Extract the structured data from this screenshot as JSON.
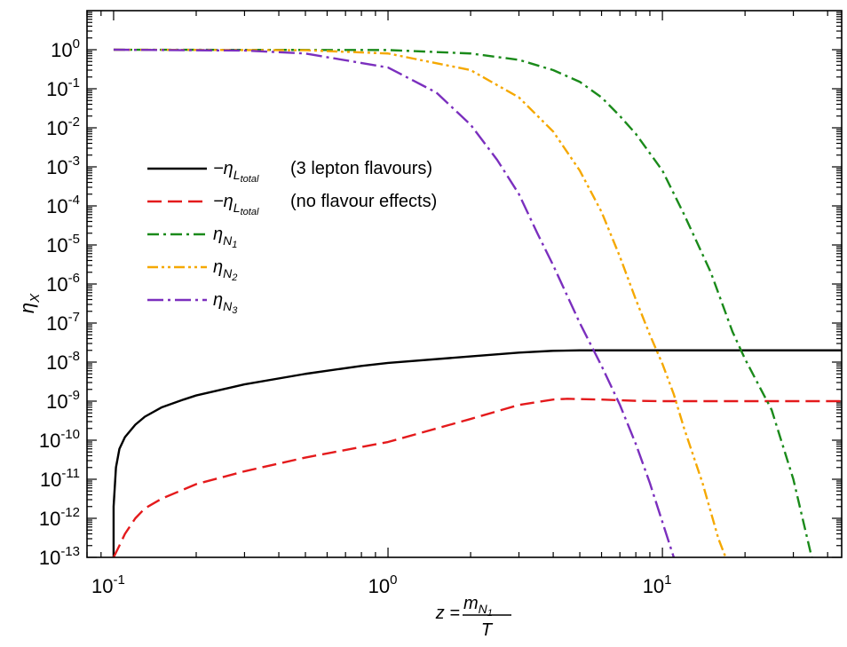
{
  "chart_data": {
    "type": "line",
    "x_scale": "log",
    "y_scale": "log",
    "xlim": [
      0.08,
      45
    ],
    "ylim": [
      1e-13,
      10
    ],
    "x_tick_labels": [
      {
        "base": "10",
        "exp": "-1",
        "value": 0.1
      },
      {
        "base": "10",
        "exp": "0",
        "value": 1
      },
      {
        "base": "10",
        "exp": "1",
        "value": 10
      }
    ],
    "y_tick_labels": [
      {
        "base": "10",
        "exp": "0",
        "value": 1
      },
      {
        "base": "10",
        "exp": "-1",
        "value": 0.1
      },
      {
        "base": "10",
        "exp": "-2",
        "value": 0.01
      },
      {
        "base": "10",
        "exp": "-3",
        "value": 0.001
      },
      {
        "base": "10",
        "exp": "-4",
        "value": 0.0001
      },
      {
        "base": "10",
        "exp": "-5",
        "value": 1e-05
      },
      {
        "base": "10",
        "exp": "-6",
        "value": 1e-06
      },
      {
        "base": "10",
        "exp": "-7",
        "value": 1e-07
      },
      {
        "base": "10",
        "exp": "-8",
        "value": 1e-08
      },
      {
        "base": "10",
        "exp": "-9",
        "value": 1e-09
      },
      {
        "base": "10",
        "exp": "-10",
        "value": 1e-10
      },
      {
        "base": "10",
        "exp": "-11",
        "value": 1e-11
      },
      {
        "base": "10",
        "exp": "-12",
        "value": 1e-12
      },
      {
        "base": "10",
        "exp": "-13",
        "value": 1e-13
      }
    ],
    "ylabel": {
      "main": "η",
      "sub": "X"
    },
    "xlabel": {
      "lhs": "z =",
      "num_main": "m",
      "num_sub": "N",
      "num_subsub": "1",
      "den": "T"
    },
    "legend_position": "upper-left",
    "series": [
      {
        "id": "total3",
        "legend": {
          "prefix": "−η",
          "sub": "L",
          "subsub": "total",
          "note": "(3 lepton flavours)"
        },
        "color": "#000000",
        "dash": "solid",
        "points": [
          [
            0.1,
            1e-13
          ],
          [
            0.1,
            2e-12
          ],
          [
            0.102,
            2e-11
          ],
          [
            0.105,
            6e-11
          ],
          [
            0.11,
            1.2e-10
          ],
          [
            0.12,
            2.5e-10
          ],
          [
            0.13,
            4e-10
          ],
          [
            0.15,
            7e-10
          ],
          [
            0.18,
            1.1e-09
          ],
          [
            0.2,
            1.4e-09
          ],
          [
            0.3,
            2.7e-09
          ],
          [
            0.5,
            5e-09
          ],
          [
            0.8,
            8e-09
          ],
          [
            1,
            9.5e-09
          ],
          [
            2,
            1.4e-08
          ],
          [
            3,
            1.75e-08
          ],
          [
            4,
            1.95e-08
          ],
          [
            5,
            2e-08
          ],
          [
            10,
            2e-08
          ],
          [
            45,
            2e-08
          ]
        ]
      },
      {
        "id": "noflav",
        "legend": {
          "prefix": "−η",
          "sub": "L",
          "subsub": "total",
          "note": "(no flavour effects)"
        },
        "color": "#e41a1c",
        "dash": "long-dash",
        "points": [
          [
            0.1,
            1e-13
          ],
          [
            0.105,
            2e-13
          ],
          [
            0.11,
            4e-13
          ],
          [
            0.12,
            1e-12
          ],
          [
            0.13,
            1.8e-12
          ],
          [
            0.15,
            3.2e-12
          ],
          [
            0.2,
            7.5e-12
          ],
          [
            0.3,
            1.6e-11
          ],
          [
            0.5,
            3.6e-11
          ],
          [
            1,
            9e-11
          ],
          [
            2,
            3.5e-10
          ],
          [
            3,
            8e-10
          ],
          [
            4,
            1.1e-09
          ],
          [
            4.5,
            1.15e-09
          ],
          [
            6,
            1.1e-09
          ],
          [
            8,
            1.02e-09
          ],
          [
            10,
            1e-09
          ],
          [
            45,
            1e-09
          ]
        ]
      },
      {
        "id": "n1",
        "legend": {
          "prefix": "η",
          "sub": "N",
          "subsub": "1",
          "note": ""
        },
        "color": "#1a8a1a",
        "dash": "dash-dot",
        "points": [
          [
            0.1,
            1
          ],
          [
            1,
            0.98
          ],
          [
            2,
            0.8
          ],
          [
            3,
            0.55
          ],
          [
            4,
            0.3
          ],
          [
            5,
            0.15
          ],
          [
            6,
            0.06
          ],
          [
            7,
            0.02
          ],
          [
            8,
            0.007
          ],
          [
            10,
            0.0008
          ],
          [
            12,
            6e-05
          ],
          [
            15,
            2e-06
          ],
          [
            18,
            6e-08
          ],
          [
            20,
            1.2e-08
          ],
          [
            25,
            6e-10
          ],
          [
            30,
            1e-11
          ],
          [
            35,
            1e-13
          ]
        ]
      },
      {
        "id": "n2",
        "legend": {
          "prefix": "η",
          "sub": "N",
          "subsub": "2",
          "note": ""
        },
        "color": "#f5a800",
        "dash": "dash-dot-dot",
        "points": [
          [
            0.1,
            1
          ],
          [
            0.5,
            0.97
          ],
          [
            1,
            0.8
          ],
          [
            2,
            0.3
          ],
          [
            3,
            0.06
          ],
          [
            4,
            0.008
          ],
          [
            5,
            0.0008
          ],
          [
            6,
            7e-05
          ],
          [
            7,
            5e-06
          ],
          [
            8,
            4e-07
          ],
          [
            9,
            5e-08
          ],
          [
            10,
            9e-09
          ],
          [
            11,
            1.5e-09
          ],
          [
            12,
            2e-10
          ],
          [
            14,
            8e-12
          ],
          [
            16,
            3e-13
          ],
          [
            17,
            1e-13
          ]
        ]
      },
      {
        "id": "n3",
        "legend": {
          "prefix": "η",
          "sub": "N",
          "subsub": "3",
          "note": ""
        },
        "color": "#7b2fbe",
        "dash": "dash-dot-long",
        "points": [
          [
            0.1,
            1
          ],
          [
            0.3,
            0.95
          ],
          [
            0.5,
            0.8
          ],
          [
            1,
            0.35
          ],
          [
            1.5,
            0.08
          ],
          [
            2,
            0.012
          ],
          [
            2.5,
            0.0015
          ],
          [
            3,
            0.0002
          ],
          [
            3.5,
            2e-05
          ],
          [
            4,
            3e-06
          ],
          [
            5,
            1e-07
          ],
          [
            6,
            8e-09
          ],
          [
            7,
            8e-10
          ],
          [
            8,
            8e-11
          ],
          [
            9,
            8e-12
          ],
          [
            10,
            8e-13
          ],
          [
            11,
            1e-13
          ]
        ]
      }
    ]
  }
}
